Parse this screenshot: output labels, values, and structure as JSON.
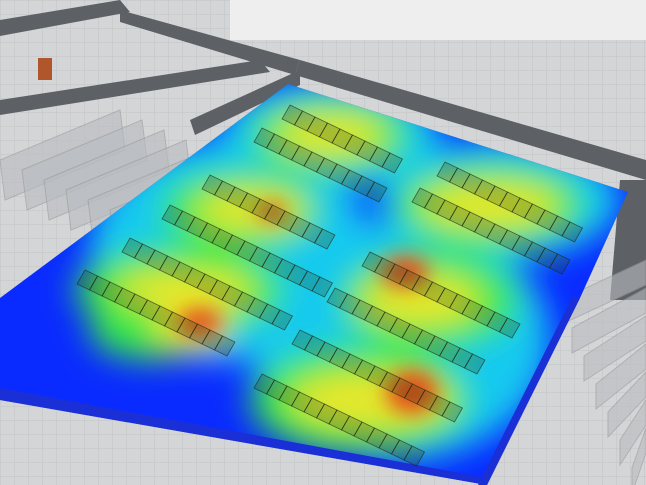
{
  "colors": {
    "background": "#e4e5e6",
    "floor_tile": "#cfd1d3",
    "wall": "#5d6166",
    "wall_top": "#8a8e93",
    "glass_rack": "#b9bcc0",
    "door": "#b0552c",
    "front_edge": "#1a2fd6",
    "heat_cold": "#0a2bff",
    "heat_cool": "#12c9f0",
    "heat_mid": "#36e84a",
    "heat_warm": "#e8e82a",
    "heat_hot": "#e2401a"
  }
}
